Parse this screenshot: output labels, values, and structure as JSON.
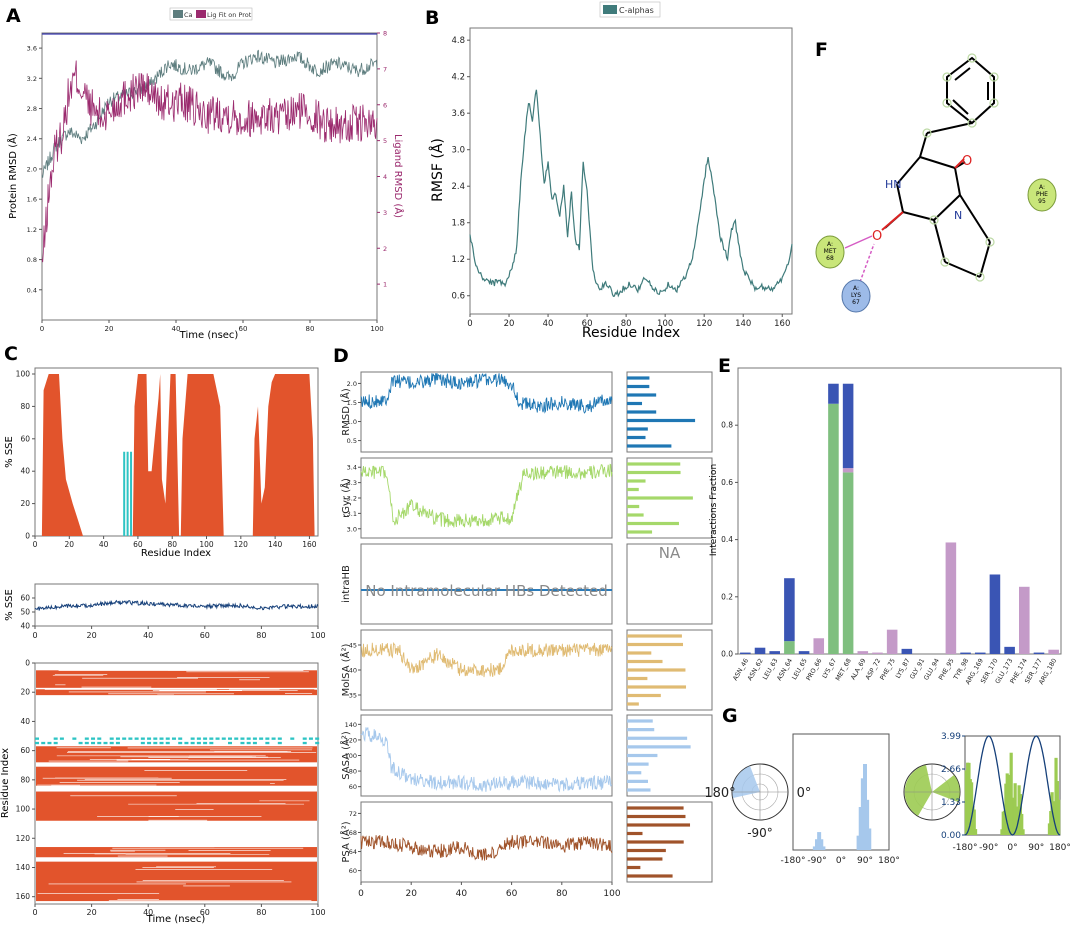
{
  "panel_letters": {
    "A": "A",
    "B": "B",
    "C": "C",
    "D": "D",
    "E": "E",
    "F": "F",
    "G": "G"
  },
  "colors": {
    "protein": "#5d7d7e",
    "ligand": "#9b2a6e",
    "rmsf": "#3f7b7b",
    "helix": "#e2542c",
    "strand": "#2ec4c4",
    "sse_line": "#16407a",
    "d_rmsd": "#1f77b4",
    "d_rgyr": "#a5d86a",
    "d_intra": "#2b7bb9",
    "d_molsa": "#e0bb73",
    "d_sasa": "#a6c8ec",
    "d_psa": "#a0532a",
    "e_hbond": "#3a55b4",
    "e_hydro": "#7fbf7f",
    "e_water": "#c49ac8",
    "g_green": "#9ccb52",
    "g_blue": "#a6c8ec",
    "g_navy": "#16407a"
  },
  "chart_data": [
    {
      "id": "A",
      "type": "line",
      "title": "",
      "legend": [
        "Ca",
        "Lig Fit on Prot"
      ],
      "xlabel": "Time (nsec)",
      "ylabel": "Protein RMSD (Å)",
      "y2label": "Ligand RMSD (Å)",
      "xlim": [
        0,
        100
      ],
      "ylim": [
        0,
        3.8
      ],
      "y2lim": [
        0,
        8
      ],
      "xticks": [
        "0",
        "20",
        "40",
        "60",
        "80",
        "100"
      ],
      "yticks": [
        "0.4",
        "0.8",
        "1.2",
        "1.6",
        "2.0",
        "2.4",
        "2.8",
        "3.2",
        "3.6"
      ],
      "y2ticks": [
        "1",
        "2",
        "3",
        "4",
        "5",
        "6",
        "7",
        "8"
      ],
      "series": [
        {
          "name": "Ca",
          "axis": "left",
          "x": [
            0,
            4,
            8,
            12,
            16,
            20,
            26,
            32,
            38,
            44,
            50,
            56,
            60,
            64,
            70,
            76,
            82,
            88,
            94,
            100
          ],
          "values": [
            1.9,
            2.3,
            2.5,
            2.4,
            2.6,
            2.9,
            3.0,
            3.1,
            3.4,
            3.3,
            3.4,
            3.2,
            3.4,
            3.5,
            3.4,
            3.5,
            3.3,
            3.4,
            3.3,
            3.4
          ]
        },
        {
          "name": "Lig Fit on Prot",
          "axis": "right",
          "x": [
            0,
            2,
            4,
            6,
            8,
            10,
            14,
            18,
            24,
            30,
            36,
            42,
            48,
            54,
            60,
            66,
            72,
            78,
            84,
            90,
            96,
            100
          ],
          "values": [
            1.5,
            3.5,
            4.8,
            5.2,
            6.3,
            6.8,
            6.0,
            5.6,
            6.2,
            6.5,
            6.0,
            6.1,
            5.7,
            5.8,
            5.6,
            5.7,
            5.6,
            5.9,
            5.5,
            5.4,
            5.5,
            5.3
          ]
        }
      ]
    },
    {
      "id": "B",
      "type": "line",
      "title": "",
      "legend": [
        "C-alphas"
      ],
      "xlabel": "Residue Index",
      "ylabel": "RMSF (Å)",
      "xlim": [
        0,
        165
      ],
      "ylim": [
        0.3,
        5.0
      ],
      "xticks": [
        "0",
        "20",
        "40",
        "60",
        "80",
        "100",
        "120",
        "140",
        "160"
      ],
      "yticks": [
        "0.6",
        "1.2",
        "1.8",
        "2.4",
        "3.0",
        "3.6",
        "4.2",
        "4.8"
      ],
      "series": [
        {
          "name": "C-alphas",
          "x": [
            0,
            3,
            6,
            9,
            12,
            15,
            18,
            21,
            24,
            26,
            28,
            30,
            32,
            34,
            36,
            38,
            40,
            42,
            44,
            46,
            48,
            50,
            52,
            54,
            56,
            58,
            60,
            63,
            66,
            70,
            74,
            78,
            82,
            86,
            90,
            94,
            98,
            102,
            106,
            110,
            114,
            117,
            120,
            122,
            124,
            126,
            128,
            130,
            132,
            134,
            136,
            138,
            140,
            143,
            146,
            150,
            154,
            158,
            162,
            165
          ],
          "values": [
            1.6,
            1.1,
            0.9,
            0.85,
            0.8,
            0.85,
            0.8,
            1.0,
            1.4,
            2.5,
            3.2,
            3.8,
            3.5,
            4.0,
            3.2,
            2.4,
            2.8,
            2.2,
            2.3,
            1.9,
            2.4,
            1.6,
            2.3,
            1.5,
            1.4,
            2.8,
            2.3,
            1.0,
            0.7,
            0.8,
            0.6,
            0.7,
            0.8,
            0.7,
            0.9,
            0.7,
            0.65,
            0.8,
            0.7,
            0.9,
            1.2,
            1.8,
            2.5,
            2.9,
            2.5,
            2.1,
            1.6,
            1.4,
            1.2,
            1.7,
            1.8,
            1.4,
            1.0,
            0.9,
            0.7,
            0.75,
            0.7,
            0.8,
            1.0,
            1.4
          ]
        }
      ]
    },
    {
      "id": "C1",
      "type": "area",
      "title": "",
      "xlabel": "Residue Index",
      "ylabel": "% SSE",
      "xlim": [
        0,
        165
      ],
      "ylim": [
        0,
        100
      ],
      "xticks": [
        "0",
        "20",
        "40",
        "60",
        "80",
        "100",
        "120",
        "140",
        "160"
      ],
      "yticks": [
        "0",
        "20",
        "40",
        "60",
        "80",
        "100"
      ],
      "series": [
        {
          "name": "helix",
          "x": [
            4,
            5,
            8,
            14,
            16,
            18,
            22,
            25,
            28,
            29,
            57,
            58,
            60,
            65,
            66,
            68,
            72,
            73,
            74,
            76,
            79,
            82,
            84,
            85,
            86,
            89,
            92,
            104,
            108,
            110,
            127,
            128,
            130,
            132,
            134,
            136,
            138,
            140,
            144,
            160,
            162,
            163
          ],
          "values": [
            0,
            90,
            100,
            100,
            60,
            35,
            20,
            10,
            0,
            0,
            0,
            80,
            100,
            100,
            40,
            40,
            85,
            100,
            35,
            20,
            100,
            100,
            0,
            0,
            60,
            100,
            100,
            100,
            80,
            0,
            0,
            60,
            80,
            20,
            30,
            80,
            95,
            100,
            100,
            100,
            60,
            0
          ]
        },
        {
          "name": "strand",
          "x": [
            51,
            52,
            53,
            54,
            55,
            56
          ],
          "values": [
            0,
            52,
            0,
            52,
            0,
            52
          ]
        }
      ]
    },
    {
      "id": "C2",
      "type": "line",
      "title": "",
      "xlabel": "",
      "ylabel": "% SSE",
      "xlim": [
        0,
        100
      ],
      "ylim": [
        40,
        70
      ],
      "xticks": [
        "0",
        "20",
        "40",
        "60",
        "80",
        "100"
      ],
      "yticks": [
        "40",
        "50",
        "60"
      ],
      "series": [
        {
          "name": "% SSE",
          "x": [
            0,
            10,
            20,
            30,
            40,
            50,
            60,
            70,
            80,
            90,
            100
          ],
          "values": [
            52,
            54,
            55,
            57,
            56,
            55,
            54,
            55,
            53,
            54,
            54
          ]
        }
      ]
    },
    {
      "id": "C3",
      "type": "heatmap",
      "title": "",
      "xlabel": "Time (nsec)",
      "ylabel": "Residue Index",
      "xlim": [
        0,
        100
      ],
      "ylim": [
        0,
        165
      ],
      "xticks": [
        "0",
        "20",
        "40",
        "60",
        "80",
        "100"
      ],
      "yticks": [
        "0",
        "20",
        "40",
        "60",
        "80",
        "100",
        "120",
        "140",
        "160"
      ],
      "series": [
        {
          "name": "helix",
          "bands": [
            [
              5,
              17
            ],
            [
              18,
              22
            ],
            [
              57,
              68
            ],
            [
              71,
              84
            ],
            [
              88,
              108
            ],
            [
              126,
              133
            ],
            [
              136,
              163
            ]
          ]
        },
        {
          "name": "strand",
          "bands": [
            [
              51,
              53
            ],
            [
              54,
              56
            ]
          ]
        }
      ]
    },
    {
      "id": "D",
      "type": "line",
      "title": "",
      "xlabel": "",
      "ylabel": "",
      "xlim": [
        0,
        100
      ],
      "xticks": [
        "0",
        "20",
        "40",
        "60",
        "80",
        "100"
      ],
      "series": [
        {
          "name": "RMSD (Å)",
          "yticks": [
            "0.5",
            "1.0",
            "1.5",
            "2.0"
          ],
          "x": [
            0,
            10,
            13,
            20,
            30,
            40,
            50,
            55,
            60,
            63,
            70,
            80,
            90,
            100
          ],
          "values": [
            1.5,
            1.6,
            2.1,
            2.0,
            2.1,
            2.0,
            2.1,
            2.1,
            2.0,
            1.5,
            1.4,
            1.5,
            1.4,
            1.6
          ]
        },
        {
          "name": "rGyr (Å)",
          "yticks": [
            "3.0",
            "3.1",
            "3.2",
            "3.3",
            "3.4"
          ],
          "x": [
            0,
            10,
            13,
            20,
            30,
            40,
            50,
            60,
            65,
            70,
            80,
            90,
            100
          ],
          "values": [
            3.37,
            3.36,
            3.05,
            3.15,
            3.06,
            3.05,
            3.06,
            3.07,
            3.37,
            3.36,
            3.37,
            3.36,
            3.38
          ]
        },
        {
          "name": "intraHB",
          "message": "No Intramolecular HBs Detected",
          "na": "NA",
          "yticks": []
        },
        {
          "name": "MolSA (Å²)",
          "yticks": [
            "35",
            "40",
            "45"
          ],
          "x": [
            0,
            15,
            20,
            30,
            40,
            55,
            60,
            70,
            80,
            90,
            100
          ],
          "values": [
            44,
            44,
            40,
            43,
            40,
            40,
            44,
            44,
            44,
            44,
            44
          ]
        },
        {
          "name": "SASA (Å²)",
          "yticks": [
            "60",
            "80",
            "100",
            "120",
            "140"
          ],
          "x": [
            0,
            5,
            10,
            12,
            20,
            30,
            40,
            50,
            60,
            70,
            80,
            90,
            100
          ],
          "values": [
            130,
            125,
            120,
            85,
            70,
            65,
            65,
            62,
            65,
            65,
            62,
            65,
            65
          ]
        },
        {
          "name": "PSA (Å²)",
          "yticks": [
            "60",
            "64",
            "68",
            "72"
          ],
          "x": [
            0,
            10,
            20,
            30,
            40,
            50,
            60,
            70,
            80,
            90,
            100
          ],
          "values": [
            66,
            66,
            65,
            64,
            65,
            63,
            66,
            66,
            65,
            66,
            65
          ]
        }
      ]
    },
    {
      "id": "E",
      "type": "bar",
      "title": "",
      "xlabel": "",
      "ylabel": "Interactions Fraction",
      "ylim": [
        0,
        1.0
      ],
      "yticks": [
        "0.0",
        "0.2",
        "0.4",
        "0.6",
        "0.8"
      ],
      "categories": [
        "ASN_46",
        "ASN_62",
        "LEU_63",
        "ASN_64",
        "LEU_65",
        "PRO_66",
        "LYS_67",
        "MET_68",
        "ALA_69",
        "ASP_72",
        "PHE_75",
        "LYS_87",
        "GLY_91",
        "GLU_94",
        "PHE_95",
        "TYR_98",
        "ARG_169",
        "SER_170",
        "GLU_173",
        "PHE_174",
        "SER_177",
        "ARG_180"
      ],
      "series": [
        {
          "name": "hydrophobic",
          "values": [
            0,
            0,
            0,
            0.045,
            0,
            0,
            0.875,
            0.635,
            0,
            0,
            0,
            0,
            0,
            0,
            0,
            0,
            0,
            0,
            0,
            0,
            0,
            0
          ]
        },
        {
          "name": "water_bridge",
          "values": [
            0,
            0,
            0,
            0,
            0,
            0.055,
            0,
            0.015,
            0.01,
            0.005,
            0.085,
            0,
            0,
            0,
            0.39,
            0,
            0,
            0,
            0,
            0.235,
            0,
            0.015
          ]
        },
        {
          "name": "hbond",
          "values": [
            0.005,
            0.022,
            0.01,
            0.22,
            0.01,
            0,
            0.07,
            0.295,
            0,
            0,
            0,
            0.018,
            0,
            0,
            0,
            0.005,
            0.005,
            0.278,
            0.025,
            0,
            0.005,
            0
          ]
        }
      ]
    },
    {
      "id": "G",
      "type": "bar",
      "title": "",
      "series": [
        {
          "name": "blue_radial",
          "ticks": [
            "180°",
            "0°",
            "-90°"
          ]
        },
        {
          "name": "blue_hist",
          "xticks": [
            "-180°",
            "-90°",
            "0°",
            "90°",
            "180°"
          ],
          "x": [
            -98,
            -90,
            -82,
            -74,
            -66,
            66,
            74,
            82,
            90,
            98,
            106
          ],
          "values": [
            1,
            3,
            5,
            3,
            1,
            4,
            12,
            20,
            24,
            14,
            6
          ]
        },
        {
          "name": "green_radial"
        },
        {
          "name": "green_profile",
          "xticks": [
            "-180°",
            "-90°",
            "0°",
            "90°",
            "180°"
          ],
          "yticks": [
            "0.00",
            "1.33",
            "2.66",
            "3.99"
          ],
          "ylim": [
            0,
            3.99
          ]
        }
      ]
    }
  ],
  "residue_labels": {
    "lys": "A:\nLYS\n67",
    "met": "A:\nMET\n68",
    "phe": "A:\nPHE\n95"
  },
  "mol_labels": {
    "hn": "HN",
    "n": "N",
    "o1": "O",
    "o2": "O"
  },
  "res_parts": {
    "met_a": "A:",
    "met_name": "MET",
    "met_num": "68",
    "lys_a": "A:",
    "lys_name": "LYS",
    "lys_num": "67",
    "phe_a": "A:",
    "phe_name": "PHE",
    "phe_num": "95"
  }
}
